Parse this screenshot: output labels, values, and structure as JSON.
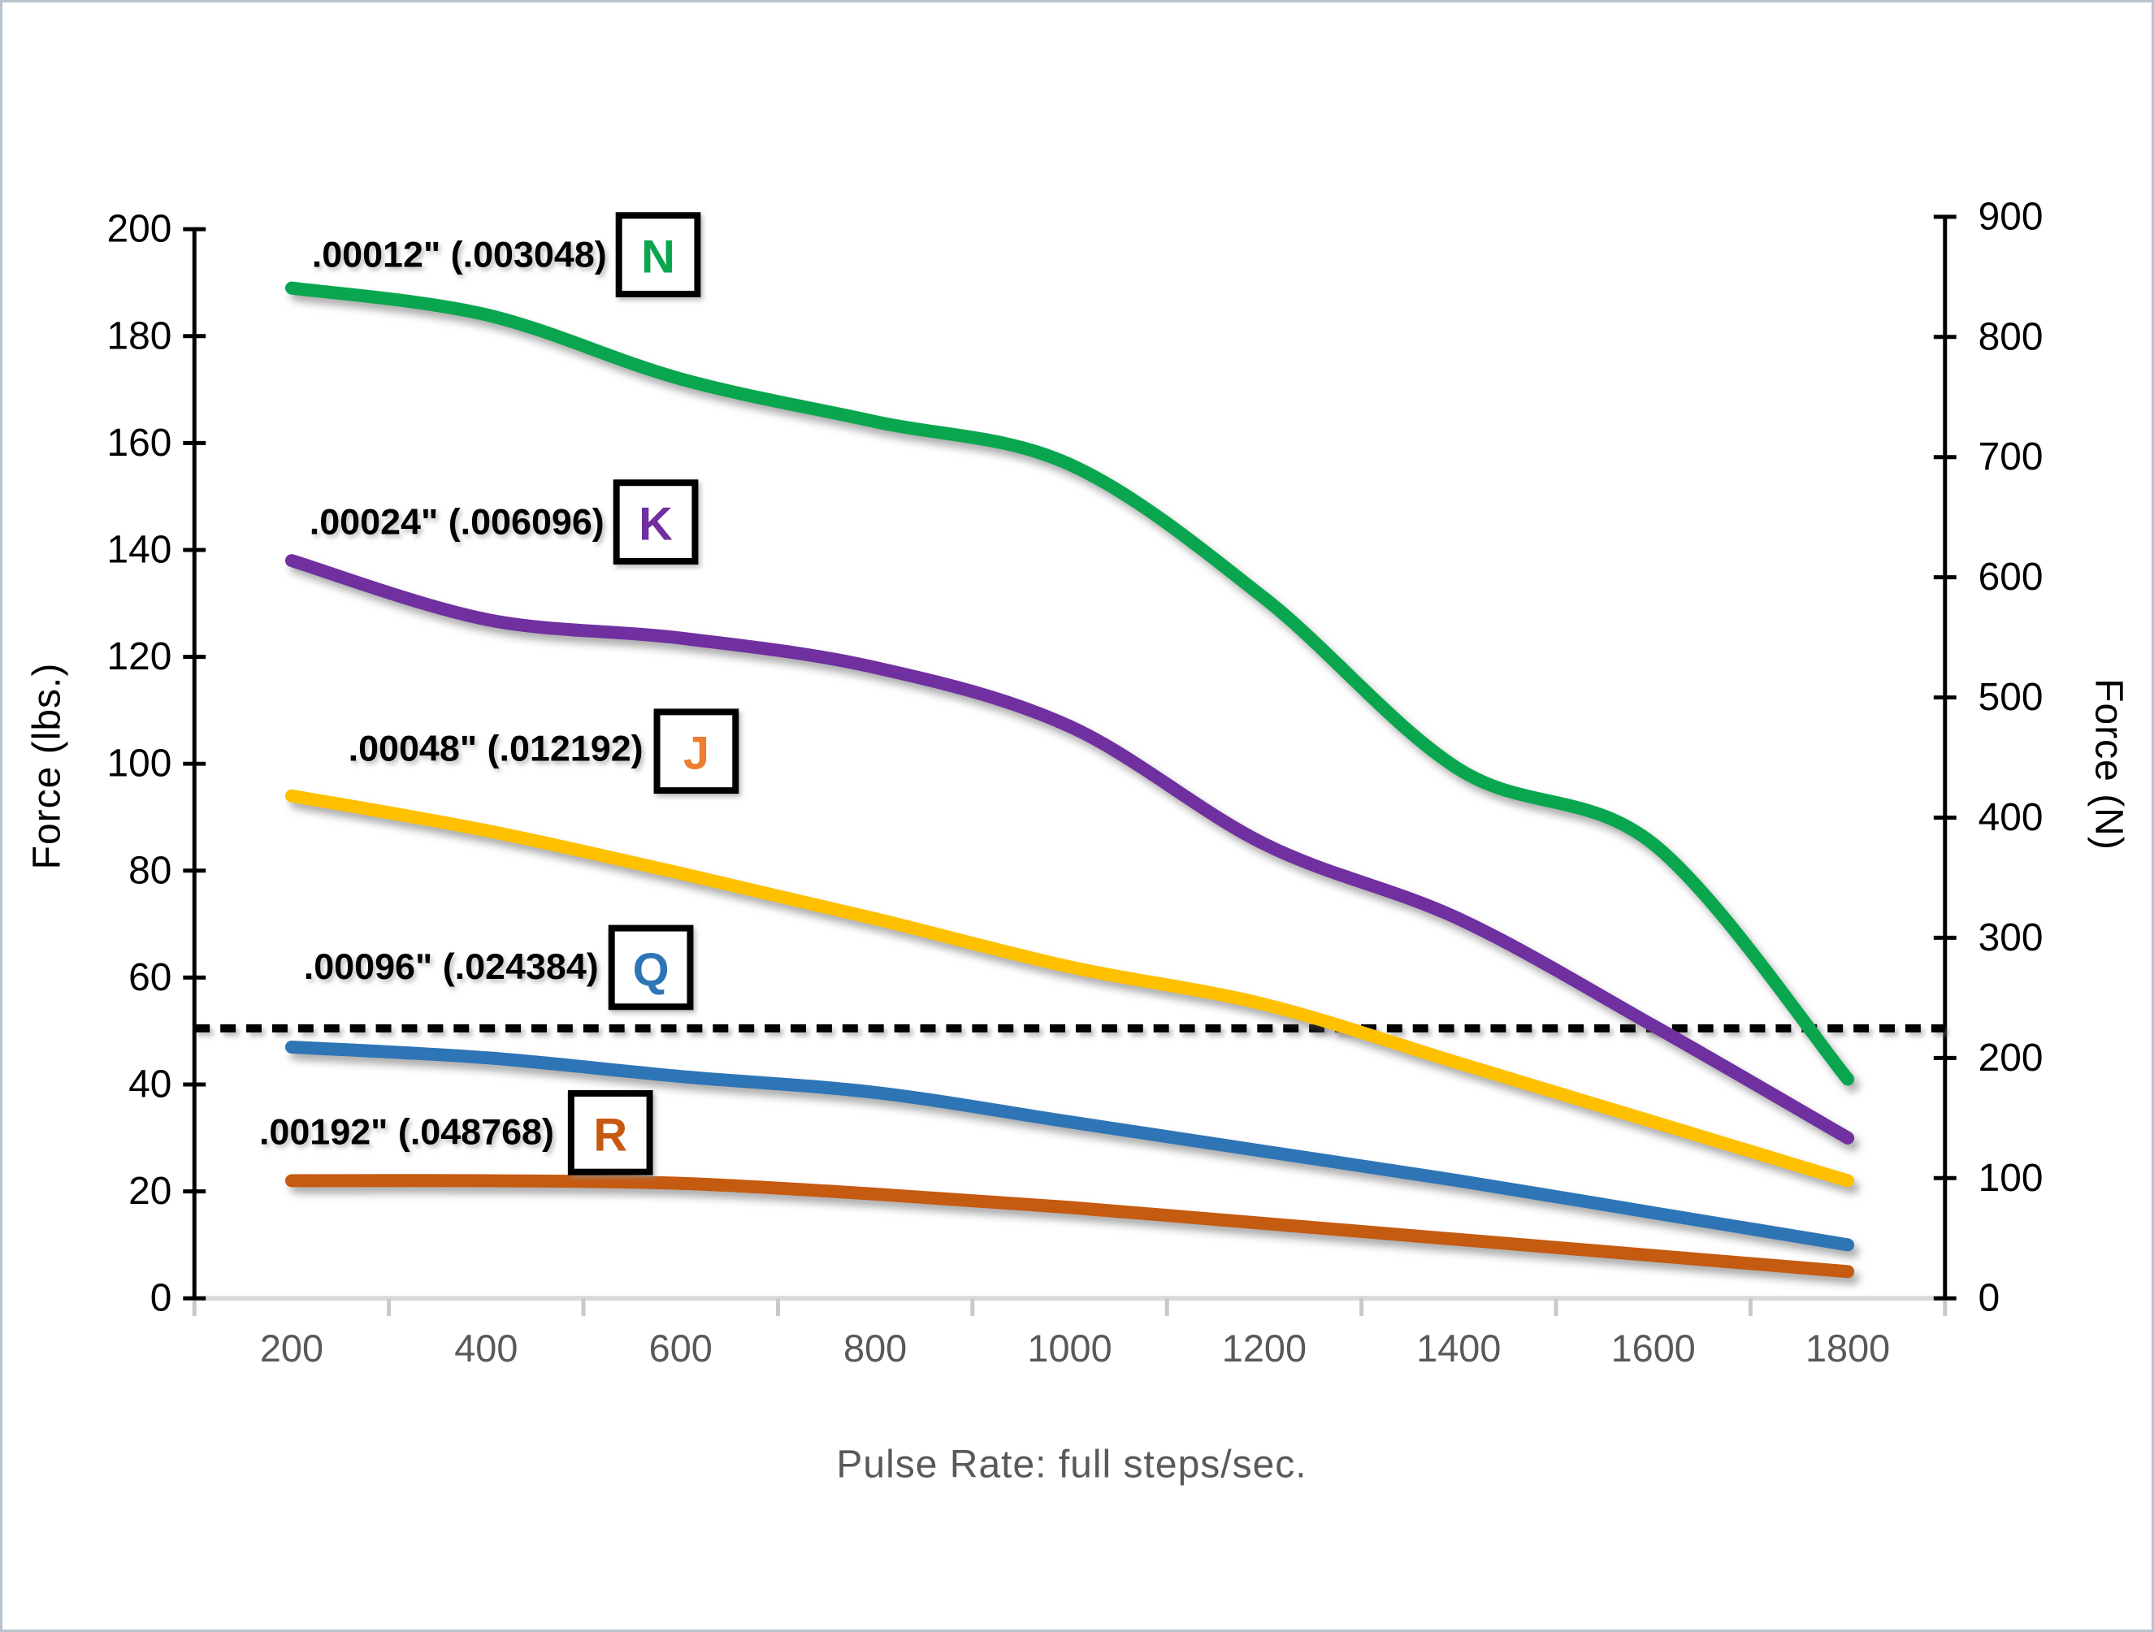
{
  "frame": {
    "background": "#ffffff",
    "border_color": "#b7c3cf"
  },
  "chart_data": {
    "type": "line",
    "title": "",
    "categories": [
      200,
      400,
      600,
      800,
      1000,
      1200,
      1400,
      1600,
      1800
    ],
    "x": {
      "label": "Pulse Rate: full steps/sec.",
      "ticks": [
        200,
        400,
        600,
        800,
        1000,
        1200,
        1400,
        1600,
        1800
      ],
      "axis_color": "#d9d9d9",
      "tick_color": "#c9c9c9",
      "tick_label_color": "#595959"
    },
    "y_left": {
      "label": "Force (lbs.)",
      "min": 0,
      "max": 200,
      "ticks": [
        0,
        20,
        40,
        60,
        80,
        100,
        120,
        140,
        160,
        180,
        200
      ],
      "axis_color": "#000000",
      "tick_label_color": "#000000"
    },
    "y_right": {
      "label": "Force (N)",
      "min": 0,
      "max": 900,
      "ticks": [
        0,
        100,
        200,
        300,
        400,
        500,
        600,
        700,
        800,
        900
      ],
      "axis_color": "#000000",
      "tick_label_color": "#000000"
    },
    "threshold_line": {
      "value_lbs": 50.5,
      "style": "dotted",
      "color": "#000000"
    },
    "letter_box": {
      "border_color": "#000000",
      "fill": "#ffffff"
    },
    "series": [
      {
        "id": "N",
        "pitch_label": ".00012\" (.003048)",
        "letter": "N",
        "letter_color": "#0aa64f",
        "color": "#0aa64f",
        "values": [
          189,
          184,
          172,
          164,
          156,
          131,
          99,
          85,
          41
        ]
      },
      {
        "id": "K",
        "pitch_label": ".00024\" (.006096)",
        "letter": "K",
        "letter_color": "#7030a0",
        "color": "#7030a0",
        "values": [
          138,
          127,
          123.5,
          118,
          107,
          85,
          71,
          51,
          30
        ]
      },
      {
        "id": "J",
        "pitch_label": ".00048\" (.012192)",
        "letter": "J",
        "letter_color": "#ed7d31",
        "color": "#ffc000",
        "values": [
          94,
          87.5,
          79.5,
          71,
          62,
          55,
          44,
          33,
          22
        ]
      },
      {
        "id": "Q",
        "pitch_label": ".00096\" (.024384)",
        "letter": "Q",
        "letter_color": "#2e75b6",
        "color": "#2e75b6",
        "values": [
          47,
          45,
          41.5,
          38.5,
          33,
          27.5,
          22,
          16,
          10
        ]
      },
      {
        "id": "R",
        "pitch_label": ".00192\" (.048768)",
        "letter": "R",
        "letter_color": "#c55a11",
        "color": "#c55a11",
        "values": [
          22,
          22,
          21.5,
          19.5,
          17,
          14,
          11,
          8,
          5
        ]
      }
    ]
  }
}
